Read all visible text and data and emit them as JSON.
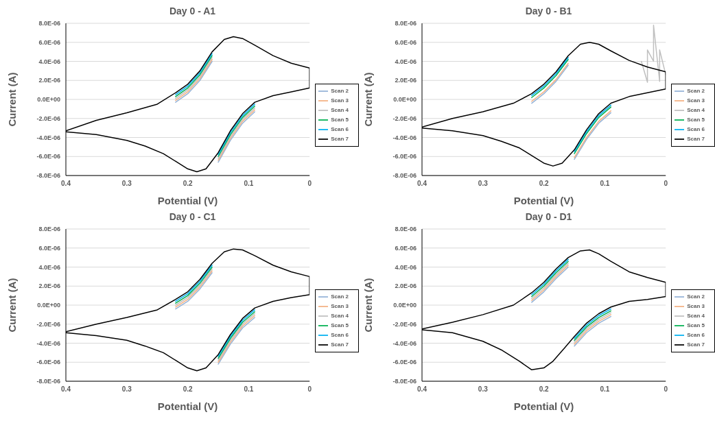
{
  "chart_data": [
    {
      "type": "line",
      "title": "Day 0 - A1",
      "xlabel": "Potential (V)",
      "ylabel": "Current (A)",
      "xlim": [
        0.4,
        0
      ],
      "xticks": [
        0.4,
        0.3,
        0.2,
        0.1,
        0
      ],
      "ylim": [
        -8e-06,
        8e-06
      ],
      "yticks": [
        {
          "value": -8e-06,
          "label": "-8.0E-06"
        },
        {
          "value": -6e-06,
          "label": "-6.0E-06"
        },
        {
          "value": -4e-06,
          "label": "-4.0E-06"
        },
        {
          "value": -2e-06,
          "label": "-2.0E-06"
        },
        {
          "value": 0,
          "label": "0.0E+00"
        },
        {
          "value": 2e-06,
          "label": "2.0E-06"
        },
        {
          "value": 4e-06,
          "label": "4.0E-06"
        },
        {
          "value": 6e-06,
          "label": "6.0E-06"
        },
        {
          "value": 8e-06,
          "label": "8.0E-06"
        }
      ],
      "grid": "y",
      "legend": "right",
      "marker": "none",
      "x": [
        0.4,
        0.35,
        0.3,
        0.27,
        0.24,
        0.22,
        0.2,
        0.185,
        0.17,
        0.15,
        0.13,
        0.11,
        0.09,
        0.06,
        0.03,
        0,
        0,
        0.03,
        0.06,
        0.09,
        0.11,
        0.125,
        0.14,
        0.16,
        0.18,
        0.2,
        0.22,
        0.25,
        0.3,
        0.35,
        0.4
      ],
      "series": [
        {
          "name": "Scan 2",
          "color": "#95b3d7",
          "values": [
            null,
            null,
            null,
            null,
            null,
            null,
            null,
            null,
            null,
            -6.6e-06,
            -4.3e-06,
            -2.5e-06,
            -1.3e-06,
            null,
            null,
            null,
            null,
            null,
            null,
            null,
            null,
            null,
            null,
            4e-06,
            2e-06,
            6e-07,
            -3e-07,
            null,
            null,
            null,
            null
          ]
        },
        {
          "name": "Scan 3",
          "color": "#f4b183",
          "values": [
            null,
            null,
            null,
            null,
            null,
            null,
            null,
            null,
            null,
            -6.4e-06,
            -4.1e-06,
            -2.3e-06,
            -1.1e-06,
            null,
            null,
            null,
            null,
            null,
            null,
            null,
            null,
            null,
            null,
            4.2e-06,
            2.2e-06,
            8e-07,
            -1e-07,
            null,
            null,
            null,
            null
          ]
        },
        {
          "name": "Scan 4",
          "color": "#bfbfbf",
          "values": [
            null,
            null,
            null,
            null,
            null,
            null,
            null,
            null,
            null,
            -6.2e-06,
            -3.9e-06,
            -2.1e-06,
            -9e-07,
            null,
            null,
            null,
            null,
            null,
            null,
            null,
            null,
            null,
            null,
            4.4e-06,
            2.4e-06,
            1e-06,
            1e-07,
            null,
            null,
            null,
            null
          ]
        },
        {
          "name": "Scan 5",
          "color": "#00b050",
          "values": [
            null,
            null,
            null,
            null,
            null,
            null,
            null,
            null,
            null,
            -6e-06,
            -3.7e-06,
            -1.9e-06,
            -7e-07,
            null,
            null,
            null,
            null,
            null,
            null,
            null,
            null,
            null,
            null,
            4.6e-06,
            2.6e-06,
            1.2e-06,
            3e-07,
            null,
            null,
            null,
            null
          ]
        },
        {
          "name": "Scan 6",
          "color": "#00b0f0",
          "values": [
            null,
            null,
            null,
            null,
            null,
            null,
            null,
            null,
            null,
            -5.8e-06,
            -3.5e-06,
            -1.7e-06,
            -5e-07,
            null,
            null,
            null,
            null,
            null,
            null,
            null,
            null,
            null,
            null,
            4.8e-06,
            2.8e-06,
            1.4e-06,
            5e-07,
            null,
            null,
            null,
            null
          ]
        },
        {
          "name": "Scan 7",
          "color": "#000000",
          "values": [
            -3.4e-06,
            -3.7e-06,
            -4.3e-06,
            -4.9e-06,
            -5.7e-06,
            -6.5e-06,
            -7.3e-06,
            -7.6e-06,
            -7.3e-06,
            -5.6e-06,
            -3.3e-06,
            -1.5e-06,
            -3e-07,
            4e-07,
            8e-07,
            1.2e-06,
            3.3e-06,
            3.8e-06,
            4.6e-06,
            5.7e-06,
            6.4e-06,
            6.6e-06,
            6.3e-06,
            5e-06,
            3e-06,
            1.6e-06,
            7e-07,
            -5e-07,
            -1.4e-06,
            -2.2e-06,
            -3.3e-06
          ]
        }
      ]
    },
    {
      "type": "line",
      "title": "Day 0 - B1",
      "xlabel": "Potential (V)",
      "ylabel": "Current (A)",
      "xlim": [
        0.4,
        0
      ],
      "xticks": [
        0.4,
        0.3,
        0.2,
        0.1,
        0
      ],
      "ylim": [
        -8e-06,
        8e-06
      ],
      "yticks": [
        {
          "value": -8e-06,
          "label": "-8.0E-06"
        },
        {
          "value": -6e-06,
          "label": "-6.0E-06"
        },
        {
          "value": -4e-06,
          "label": "-4.0E-06"
        },
        {
          "value": -2e-06,
          "label": "-2.0E-06"
        },
        {
          "value": 0,
          "label": "0.0E+00"
        },
        {
          "value": 2e-06,
          "label": "2.0E-06"
        },
        {
          "value": 4e-06,
          "label": "4.0E-06"
        },
        {
          "value": 6e-06,
          "label": "6.0E-06"
        },
        {
          "value": 8e-06,
          "label": "8.0E-06"
        }
      ],
      "grid": "y",
      "legend": "right",
      "marker": "none",
      "x": [
        0.4,
        0.35,
        0.3,
        0.27,
        0.24,
        0.22,
        0.2,
        0.185,
        0.17,
        0.15,
        0.13,
        0.11,
        0.09,
        0.06,
        0.03,
        0,
        0,
        0.03,
        0.06,
        0.09,
        0.11,
        0.125,
        0.14,
        0.16,
        0.18,
        0.2,
        0.22,
        0.25,
        0.3,
        0.35,
        0.4
      ],
      "series": [
        {
          "name": "Scan 2",
          "color": "#95b3d7",
          "values": [
            null,
            null,
            null,
            null,
            null,
            null,
            null,
            null,
            null,
            -6.3e-06,
            -4.2e-06,
            -2.5e-06,
            -1.4e-06,
            null,
            null,
            null,
            null,
            null,
            null,
            null,
            null,
            null,
            null,
            3.6e-06,
            1.9e-06,
            6e-07,
            -4e-07,
            null,
            null,
            null,
            null
          ]
        },
        {
          "name": "Scan 3",
          "color": "#f4b183",
          "values": [
            null,
            null,
            null,
            null,
            null,
            null,
            null,
            null,
            null,
            -6.1e-06,
            -4e-06,
            -2.3e-06,
            -1.2e-06,
            null,
            null,
            null,
            null,
            null,
            null,
            null,
            null,
            null,
            null,
            3.8e-06,
            2.1e-06,
            8e-07,
            -2e-07,
            null,
            null,
            null,
            null
          ]
        },
        {
          "name": "Scan 4",
          "color": "#bfbfbf",
          "x": [
            0,
            0.01,
            0.01,
            0.02,
            0.02,
            0.03,
            0.03,
            0.04
          ],
          "values": [
            2.6e-06,
            5.2e-06,
            1.9e-06,
            7.8e-06,
            4e-06,
            5.2e-06,
            1.8e-06,
            4e-06
          ]
        },
        {
          "name": "Scan 5",
          "color": "#00b050",
          "values": [
            null,
            null,
            null,
            null,
            null,
            null,
            null,
            null,
            null,
            -5.7e-06,
            -3.6e-06,
            -1.9e-06,
            -8e-07,
            null,
            null,
            null,
            null,
            null,
            null,
            null,
            null,
            null,
            null,
            4.2e-06,
            2.5e-06,
            1.2e-06,
            2e-07,
            null,
            null,
            null,
            null
          ]
        },
        {
          "name": "Scan 6",
          "color": "#00b0f0",
          "values": [
            null,
            null,
            null,
            null,
            null,
            null,
            null,
            null,
            null,
            -5.5e-06,
            -3.4e-06,
            -1.7e-06,
            -6e-07,
            null,
            null,
            null,
            null,
            null,
            null,
            null,
            null,
            null,
            null,
            4.4e-06,
            2.7e-06,
            1.4e-06,
            4e-07,
            null,
            null,
            null,
            null
          ]
        },
        {
          "name": "Scan 7",
          "color": "#000000",
          "values": [
            -3e-06,
            -3.3e-06,
            -3.8e-06,
            -4.4e-06,
            -5.1e-06,
            -5.9e-06,
            -6.7e-06,
            -7e-06,
            -6.7e-06,
            -5.3e-06,
            -3.2e-06,
            -1.5e-06,
            -4e-07,
            3e-07,
            7e-07,
            1.1e-06,
            2.9e-06,
            3.4e-06,
            4.1e-06,
            5.1e-06,
            5.8e-06,
            6e-06,
            5.8e-06,
            4.6e-06,
            2.9e-06,
            1.6e-06,
            6e-07,
            -4e-07,
            -1.3e-06,
            -2e-06,
            -2.9e-06
          ]
        }
      ]
    },
    {
      "type": "line",
      "title": "Day 0 - C1",
      "xlabel": "Potential (V)",
      "ylabel": "Current (A)",
      "xlim": [
        0.4,
        0
      ],
      "xticks": [
        0.4,
        0.3,
        0.2,
        0.1,
        0
      ],
      "ylim": [
        -8e-06,
        8e-06
      ],
      "yticks": [
        {
          "value": -8e-06,
          "label": "-8.0E-06"
        },
        {
          "value": -6e-06,
          "label": "-6.0E-06"
        },
        {
          "value": -4e-06,
          "label": "-4.0E-06"
        },
        {
          "value": -2e-06,
          "label": "-2.0E-06"
        },
        {
          "value": 0,
          "label": "0.0E+00"
        },
        {
          "value": 2e-06,
          "label": "2.0E-06"
        },
        {
          "value": 4e-06,
          "label": "4.0E-06"
        },
        {
          "value": 6e-06,
          "label": "6.0E-06"
        },
        {
          "value": 8e-06,
          "label": "8.0E-06"
        }
      ],
      "grid": "y",
      "legend": "right",
      "marker": "none",
      "x": [
        0.4,
        0.35,
        0.3,
        0.27,
        0.24,
        0.22,
        0.2,
        0.185,
        0.17,
        0.15,
        0.13,
        0.11,
        0.09,
        0.06,
        0.03,
        0,
        0,
        0.03,
        0.06,
        0.09,
        0.11,
        0.125,
        0.14,
        0.16,
        0.18,
        0.2,
        0.22,
        0.25,
        0.3,
        0.35,
        0.4
      ],
      "series": [
        {
          "name": "Scan 2",
          "color": "#95b3d7",
          "values": [
            null,
            null,
            null,
            null,
            null,
            null,
            null,
            null,
            null,
            -6.2e-06,
            -4.1e-06,
            -2.4e-06,
            -1.3e-06,
            null,
            null,
            null,
            null,
            null,
            null,
            null,
            null,
            null,
            null,
            3.4e-06,
            1.7e-06,
            4e-07,
            -4e-07,
            null,
            null,
            null,
            null
          ]
        },
        {
          "name": "Scan 3",
          "color": "#f4b183",
          "values": [
            null,
            null,
            null,
            null,
            null,
            null,
            null,
            null,
            null,
            -6e-06,
            -3.9e-06,
            -2.2e-06,
            -1.1e-06,
            null,
            null,
            null,
            null,
            null,
            null,
            null,
            null,
            null,
            null,
            3.6e-06,
            1.9e-06,
            6e-07,
            -2e-07,
            null,
            null,
            null,
            null
          ]
        },
        {
          "name": "Scan 4",
          "color": "#bfbfbf",
          "values": [
            null,
            null,
            null,
            null,
            null,
            null,
            null,
            null,
            null,
            -5.8e-06,
            -3.7e-06,
            -2e-06,
            -9e-07,
            null,
            null,
            null,
            null,
            null,
            null,
            null,
            null,
            null,
            null,
            3.8e-06,
            2.1e-06,
            8e-07,
            0.0,
            null,
            null,
            null,
            null
          ]
        },
        {
          "name": "Scan 5",
          "color": "#00b050",
          "values": [
            null,
            null,
            null,
            null,
            null,
            null,
            null,
            null,
            null,
            -5.6e-06,
            -3.5e-06,
            -1.8e-06,
            -7e-07,
            null,
            null,
            null,
            null,
            null,
            null,
            null,
            null,
            null,
            null,
            4e-06,
            2.3e-06,
            1e-06,
            2e-07,
            null,
            null,
            null,
            null
          ]
        },
        {
          "name": "Scan 6",
          "color": "#00b0f0",
          "values": [
            null,
            null,
            null,
            null,
            null,
            null,
            null,
            null,
            null,
            -5.4e-06,
            -3.3e-06,
            -1.6e-06,
            -5e-07,
            null,
            null,
            null,
            null,
            null,
            null,
            null,
            null,
            null,
            null,
            4.2e-06,
            2.5e-06,
            1.2e-06,
            4e-07,
            null,
            null,
            null,
            null
          ]
        },
        {
          "name": "Scan 7",
          "color": "#000000",
          "values": [
            -2.9e-06,
            -3.2e-06,
            -3.7e-06,
            -4.3e-06,
            -5e-06,
            -5.8e-06,
            -6.6e-06,
            -6.9e-06,
            -6.6e-06,
            -5.2e-06,
            -3.1e-06,
            -1.4e-06,
            -3e-07,
            4e-07,
            8e-07,
            1.1e-06,
            3e-06,
            3.5e-06,
            4.2e-06,
            5.2e-06,
            5.8e-06,
            5.9e-06,
            5.6e-06,
            4.4e-06,
            2.7e-06,
            1.4e-06,
            6e-07,
            -5e-07,
            -1.3e-06,
            -2e-06,
            -2.8e-06
          ]
        }
      ]
    },
    {
      "type": "line",
      "title": "Day 0 - D1",
      "xlabel": "Potential (V)",
      "ylabel": "Current (A)",
      "xlim": [
        0.4,
        0
      ],
      "xticks": [
        0.4,
        0.3,
        0.2,
        0.1,
        0
      ],
      "ylim": [
        -8e-06,
        8e-06
      ],
      "yticks": [
        {
          "value": -8e-06,
          "label": "-8.0E-06"
        },
        {
          "value": -6e-06,
          "label": "-6.0E-06"
        },
        {
          "value": -4e-06,
          "label": "-4.0E-06"
        },
        {
          "value": -2e-06,
          "label": "-2.0E-06"
        },
        {
          "value": 0,
          "label": "0.0E+00"
        },
        {
          "value": 2e-06,
          "label": "2.0E-06"
        },
        {
          "value": 4e-06,
          "label": "4.0E-06"
        },
        {
          "value": 6e-06,
          "label": "6.0E-06"
        },
        {
          "value": 8e-06,
          "label": "8.0E-06"
        }
      ],
      "grid": "y",
      "legend": "right",
      "marker": "none",
      "x": [
        0.4,
        0.35,
        0.3,
        0.27,
        0.24,
        0.22,
        0.2,
        0.185,
        0.17,
        0.15,
        0.13,
        0.11,
        0.09,
        0.06,
        0.03,
        0,
        0,
        0.03,
        0.06,
        0.09,
        0.11,
        0.125,
        0.14,
        0.16,
        0.18,
        0.2,
        0.22,
        0.25,
        0.3,
        0.35,
        0.4
      ],
      "series": [
        {
          "name": "Scan 2",
          "color": "#95b3d7",
          "values": [
            null,
            null,
            null,
            null,
            null,
            null,
            null,
            null,
            null,
            -4.3e-06,
            -2.9e-06,
            -1.9e-06,
            -1.2e-06,
            null,
            null,
            null,
            null,
            null,
            null,
            null,
            null,
            null,
            null,
            4e-06,
            2.8e-06,
            1.4e-06,
            3e-07,
            null,
            null,
            null,
            null
          ]
        },
        {
          "name": "Scan 3",
          "color": "#f4b183",
          "values": [
            null,
            null,
            null,
            null,
            null,
            null,
            null,
            null,
            null,
            -4.1e-06,
            -2.7e-06,
            -1.7e-06,
            -1e-06,
            null,
            null,
            null,
            null,
            null,
            null,
            null,
            null,
            null,
            null,
            4.2e-06,
            3e-06,
            1.6e-06,
            5e-07,
            null,
            null,
            null,
            null
          ]
        },
        {
          "name": "Scan 4",
          "color": "#bfbfbf",
          "values": [
            null,
            null,
            null,
            null,
            null,
            null,
            null,
            null,
            null,
            -3.9e-06,
            -2.5e-06,
            -1.5e-06,
            -8e-07,
            null,
            null,
            null,
            null,
            null,
            null,
            null,
            null,
            null,
            null,
            4.4e-06,
            3.2e-06,
            1.8e-06,
            7e-07,
            null,
            null,
            null,
            null
          ]
        },
        {
          "name": "Scan 5",
          "color": "#00b050",
          "values": [
            null,
            null,
            null,
            null,
            null,
            null,
            null,
            null,
            null,
            -3.7e-06,
            -2.3e-06,
            -1.3e-06,
            -6e-07,
            null,
            null,
            null,
            null,
            null,
            null,
            null,
            null,
            null,
            null,
            4.6e-06,
            3.4e-06,
            2e-06,
            9e-07,
            null,
            null,
            null,
            null
          ]
        },
        {
          "name": "Scan 6",
          "color": "#00b0f0",
          "values": [
            null,
            null,
            null,
            null,
            null,
            null,
            null,
            null,
            null,
            -3.5e-06,
            -2.1e-06,
            -1.1e-06,
            -4e-07,
            null,
            null,
            null,
            null,
            null,
            null,
            null,
            null,
            null,
            null,
            4.8e-06,
            3.6e-06,
            2.2e-06,
            1.1e-06,
            null,
            null,
            null,
            null
          ]
        },
        {
          "name": "Scan 7",
          "color": "#000000",
          "values": [
            -2.6e-06,
            -2.9e-06,
            -3.8e-06,
            -4.7e-06,
            -5.9e-06,
            -6.8e-06,
            -6.6e-06,
            -5.9e-06,
            -4.8e-06,
            -3.3e-06,
            -1.9e-06,
            -9e-07,
            -2e-07,
            4e-07,
            6e-07,
            9e-07,
            2.4e-06,
            2.9e-06,
            3.5e-06,
            4.6e-06,
            5.4e-06,
            5.8e-06,
            5.7e-06,
            5e-06,
            3.8e-06,
            2.4e-06,
            1.3e-06,
            0.0,
            -1e-06,
            -1.8e-06,
            -2.5e-06
          ]
        }
      ]
    }
  ]
}
